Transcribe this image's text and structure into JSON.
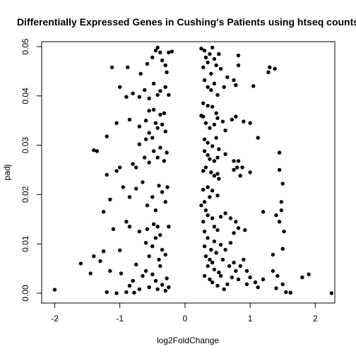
{
  "chart_data": {
    "type": "scatter",
    "title": "Differentially Expressed Genes in Cushing's Patients using htseq counts",
    "xlabel": "log2FoldChange",
    "ylabel": "padj",
    "xlim": [
      -2.2,
      2.3
    ],
    "ylim": [
      -0.002,
      0.051
    ],
    "x_ticks": [
      -2,
      -1,
      0,
      1,
      2
    ],
    "x_tick_labels": [
      "-2",
      "-1",
      "0",
      "1",
      "2"
    ],
    "y_ticks": [
      0.0,
      0.01,
      0.02,
      0.03,
      0.04,
      0.05
    ],
    "y_tick_labels": [
      "0.00",
      "0.01",
      "0.02",
      "0.03",
      "0.04",
      "0.05"
    ],
    "grid": false,
    "marker_color": "#000000",
    "points": [
      [
        -2.0,
        0.0007
      ],
      [
        -1.6,
        0.006
      ],
      [
        -1.45,
        0.004
      ],
      [
        -1.4,
        0.0075
      ],
      [
        -1.3,
        0.0065
      ],
      [
        -1.25,
        0.0085
      ],
      [
        -1.2,
        0.0002
      ],
      [
        -1.15,
        0.0045
      ],
      [
        -1.05,
        0.0
      ],
      [
        -1.0,
        0.0087
      ],
      [
        -0.98,
        0.004
      ],
      [
        -0.9,
        0.0002
      ],
      [
        -0.85,
        0.0015
      ],
      [
        -0.8,
        0.0025
      ],
      [
        -0.78,
        0.0001
      ],
      [
        -0.75,
        0.0058
      ],
      [
        -0.7,
        0.0008
      ],
      [
        -0.65,
        0.0035
      ],
      [
        -0.6,
        0.0045
      ],
      [
        -0.55,
        0.0012
      ],
      [
        -0.5,
        0.0038
      ],
      [
        -0.45,
        0.0025
      ],
      [
        -0.42,
        0.0008
      ],
      [
        -0.38,
        0.0055
      ],
      [
        -0.35,
        0.0017
      ],
      [
        -0.3,
        0.0005
      ],
      [
        -0.28,
        0.003
      ],
      [
        -0.25,
        0.0012
      ],
      [
        -0.6,
        0.0102
      ],
      [
        -0.55,
        0.0075
      ],
      [
        -0.5,
        0.0095
      ],
      [
        -0.45,
        0.0112
      ],
      [
        -0.4,
        0.0068
      ],
      [
        -0.35,
        0.0088
      ],
      [
        -0.3,
        0.0078
      ],
      [
        -0.58,
        0.013
      ],
      [
        -0.48,
        0.014
      ],
      [
        -0.42,
        0.0135
      ],
      [
        -0.38,
        0.0118
      ],
      [
        -0.25,
        0.0135
      ],
      [
        -1.1,
        0.013
      ],
      [
        -0.9,
        0.0145
      ],
      [
        -0.85,
        0.0135
      ],
      [
        -0.7,
        0.0125
      ],
      [
        -1.25,
        0.0165
      ],
      [
        -1.15,
        0.019
      ],
      [
        -1.2,
        0.024
      ],
      [
        -1.05,
        0.0248
      ],
      [
        -1.0,
        0.0255
      ],
      [
        -0.95,
        0.0215
      ],
      [
        -0.85,
        0.0195
      ],
      [
        -0.75,
        0.0212
      ],
      [
        -0.65,
        0.0225
      ],
      [
        -0.58,
        0.0178
      ],
      [
        -0.5,
        0.0195
      ],
      [
        -0.45,
        0.0168
      ],
      [
        -0.4,
        0.0218
      ],
      [
        -0.35,
        0.0205
      ],
      [
        -0.3,
        0.0185
      ],
      [
        -0.27,
        0.0215
      ],
      [
        -0.62,
        0.0275
      ],
      [
        -0.55,
        0.0265
      ],
      [
        -0.48,
        0.0288
      ],
      [
        -0.42,
        0.0275
      ],
      [
        -0.38,
        0.0295
      ],
      [
        -0.32,
        0.0268
      ],
      [
        -0.28,
        0.0285
      ],
      [
        -0.75,
        0.0255
      ],
      [
        -0.8,
        0.0262
      ],
      [
        -0.7,
        0.0302
      ],
      [
        -0.6,
        0.0312
      ],
      [
        -0.5,
        0.0315
      ],
      [
        -1.4,
        0.029
      ],
      [
        -1.35,
        0.0288
      ],
      [
        -1.2,
        0.0318
      ],
      [
        -1.05,
        0.0345
      ],
      [
        -0.85,
        0.0352
      ],
      [
        -0.7,
        0.0338
      ],
      [
        -0.6,
        0.035
      ],
      [
        -0.55,
        0.0325
      ],
      [
        -0.45,
        0.0345
      ],
      [
        -0.42,
        0.0335
      ],
      [
        -0.35,
        0.0342
      ],
      [
        -0.3,
        0.0328
      ],
      [
        -1.0,
        0.0418
      ],
      [
        -0.9,
        0.0398
      ],
      [
        -0.8,
        0.0405
      ],
      [
        -0.7,
        0.0398
      ],
      [
        -0.62,
        0.0412
      ],
      [
        -0.55,
        0.0395
      ],
      [
        -0.48,
        0.0425
      ],
      [
        -0.42,
        0.0402
      ],
      [
        -0.38,
        0.041
      ],
      [
        -0.3,
        0.0418
      ],
      [
        -0.25,
        0.0402
      ],
      [
        -1.12,
        0.0458
      ],
      [
        -0.88,
        0.0458
      ],
      [
        -0.68,
        0.0445
      ],
      [
        -0.58,
        0.0465
      ],
      [
        -0.5,
        0.0478
      ],
      [
        -0.45,
        0.0492
      ],
      [
        -0.42,
        0.0498
      ],
      [
        -0.38,
        0.0488
      ],
      [
        -0.35,
        0.0472
      ],
      [
        -0.3,
        0.0462
      ],
      [
        -0.28,
        0.0448
      ],
      [
        -0.25,
        0.0488
      ],
      [
        -0.2,
        0.049
      ],
      [
        -0.55,
        0.037
      ],
      [
        -0.48,
        0.0372
      ],
      [
        -0.38,
        0.0362
      ],
      [
        -0.32,
        0.0365
      ],
      [
        0.25,
        0.0496
      ],
      [
        0.3,
        0.0492
      ],
      [
        0.32,
        0.0478
      ],
      [
        0.35,
        0.0468
      ],
      [
        0.38,
        0.0485
      ],
      [
        0.42,
        0.0498
      ],
      [
        0.45,
        0.0475
      ],
      [
        0.48,
        0.0462
      ],
      [
        0.52,
        0.0485
      ],
      [
        0.28,
        0.0458
      ],
      [
        0.4,
        0.0445
      ],
      [
        0.55,
        0.0455
      ],
      [
        0.82,
        0.0482
      ],
      [
        0.82,
        0.0462
      ],
      [
        0.3,
        0.0432
      ],
      [
        0.35,
        0.0418
      ],
      [
        0.4,
        0.0412
      ],
      [
        0.45,
        0.0425
      ],
      [
        0.5,
        0.0402
      ],
      [
        0.6,
        0.0418
      ],
      [
        0.65,
        0.0438
      ],
      [
        0.75,
        0.0432
      ],
      [
        0.78,
        0.0422
      ],
      [
        1.05,
        0.042
      ],
      [
        1.3,
        0.0458
      ],
      [
        1.38,
        0.0455
      ],
      [
        1.28,
        0.0448
      ],
      [
        0.28,
        0.0385
      ],
      [
        0.35,
        0.038
      ],
      [
        0.42,
        0.0378
      ],
      [
        0.48,
        0.0365
      ],
      [
        0.5,
        0.0355
      ],
      [
        0.28,
        0.0358
      ],
      [
        0.25,
        0.036
      ],
      [
        0.32,
        0.0345
      ],
      [
        0.38,
        0.0335
      ],
      [
        0.45,
        0.0342
      ],
      [
        0.58,
        0.0348
      ],
      [
        0.62,
        0.033
      ],
      [
        0.72,
        0.0352
      ],
      [
        0.78,
        0.0358
      ],
      [
        0.9,
        0.0348
      ],
      [
        1.0,
        0.0345
      ],
      [
        1.12,
        0.0315
      ],
      [
        0.3,
        0.0312
      ],
      [
        0.35,
        0.0305
      ],
      [
        0.42,
        0.0298
      ],
      [
        0.48,
        0.0315
      ],
      [
        0.52,
        0.0292
      ],
      [
        0.3,
        0.0288
      ],
      [
        0.35,
        0.028
      ],
      [
        0.38,
        0.0272
      ],
      [
        0.45,
        0.0268
      ],
      [
        0.5,
        0.0275
      ],
      [
        0.62,
        0.0282
      ],
      [
        0.75,
        0.0268
      ],
      [
        0.82,
        0.0268
      ],
      [
        0.88,
        0.0255
      ],
      [
        0.28,
        0.0248
      ],
      [
        0.32,
        0.0255
      ],
      [
        0.4,
        0.0245
      ],
      [
        0.45,
        0.0238
      ],
      [
        0.5,
        0.0242
      ],
      [
        0.52,
        0.0232
      ],
      [
        0.75,
        0.025
      ],
      [
        0.8,
        0.0255
      ],
      [
        0.85,
        0.0238
      ],
      [
        1.0,
        0.0245
      ],
      [
        1.45,
        0.0285
      ],
      [
        1.45,
        0.025
      ],
      [
        1.5,
        0.0222
      ],
      [
        0.28,
        0.021
      ],
      [
        0.35,
        0.0215
      ],
      [
        0.42,
        0.0208
      ],
      [
        0.5,
        0.0198
      ],
      [
        0.38,
        0.0195
      ],
      [
        0.3,
        0.0185
      ],
      [
        0.25,
        0.0178
      ],
      [
        0.32,
        0.0168
      ],
      [
        0.55,
        0.0155
      ],
      [
        0.35,
        0.0158
      ],
      [
        0.42,
        0.0152
      ],
      [
        0.45,
        0.0135
      ],
      [
        0.5,
        0.0128
      ],
      [
        0.3,
        0.0125
      ],
      [
        0.28,
        0.0145
      ],
      [
        0.62,
        0.0162
      ],
      [
        0.7,
        0.0152
      ],
      [
        0.78,
        0.0145
      ],
      [
        0.82,
        0.0132
      ],
      [
        0.75,
        0.0122
      ],
      [
        0.92,
        0.0128
      ],
      [
        1.2,
        0.0165
      ],
      [
        1.48,
        0.0185
      ],
      [
        1.48,
        0.0168
      ],
      [
        1.4,
        0.0158
      ],
      [
        1.45,
        0.0145
      ],
      [
        1.52,
        0.0125
      ],
      [
        0.35,
        0.0112
      ],
      [
        0.45,
        0.0105
      ],
      [
        0.55,
        0.0098
      ],
      [
        0.3,
        0.0095
      ],
      [
        0.4,
        0.0088
      ],
      [
        0.48,
        0.0082
      ],
      [
        0.32,
        0.0075
      ],
      [
        0.38,
        0.0068
      ],
      [
        0.42,
        0.0062
      ],
      [
        0.35,
        0.0055
      ],
      [
        0.45,
        0.0048
      ],
      [
        0.52,
        0.0042
      ],
      [
        0.3,
        0.0035
      ],
      [
        0.38,
        0.0028
      ],
      [
        0.42,
        0.0022
      ],
      [
        0.5,
        0.0015
      ],
      [
        0.6,
        0.0008
      ],
      [
        0.65,
        0.0018
      ],
      [
        0.72,
        0.0032
      ],
      [
        0.78,
        0.0045
      ],
      [
        0.85,
        0.0055
      ],
      [
        0.9,
        0.0068
      ],
      [
        0.95,
        0.0045
      ],
      [
        1.0,
        0.0032
      ],
      [
        1.08,
        0.0022
      ],
      [
        1.12,
        0.0012
      ],
      [
        1.2,
        0.0028
      ],
      [
        1.35,
        0.0045
      ],
      [
        1.42,
        0.0035
      ],
      [
        1.5,
        0.0018
      ],
      [
        1.55,
        0.0002
      ],
      [
        1.62,
        0.0001
      ],
      [
        1.5,
        0.009
      ],
      [
        1.35,
        0.0078
      ],
      [
        1.8,
        0.0032
      ],
      [
        1.9,
        0.0038
      ],
      [
        2.25,
        0.0
      ],
      [
        1.4,
        0.001
      ],
      [
        0.95,
        0.0018
      ],
      [
        0.82,
        0.0028
      ],
      [
        0.68,
        0.0055
      ],
      [
        0.58,
        0.0068
      ],
      [
        0.62,
        0.0088
      ],
      [
        0.7,
        0.0102
      ],
      [
        0.75,
        0.0062
      ],
      [
        0.55,
        0.0035
      ]
    ]
  }
}
